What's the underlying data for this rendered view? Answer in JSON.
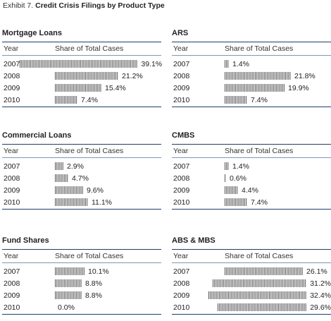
{
  "header": {
    "exhibit_label": "Exhibit 7.",
    "title": "Credit Crisis Filings by Product Type"
  },
  "colors": {
    "bar": "#555555",
    "rule_dark": "#1f3f66",
    "rule_light": "#7f96b3"
  },
  "chart_data": [
    {
      "type": "bar",
      "title": "Mortgage Loans",
      "xlabel": "Year",
      "ylabel": "Share of Total Cases",
      "categories": [
        "2007",
        "2008",
        "2009",
        "2010"
      ],
      "values": [
        39.1,
        21.2,
        15.4,
        7.4
      ],
      "labels": [
        "39.1%",
        "21.2%",
        "15.4%",
        "7.4%"
      ]
    },
    {
      "type": "bar",
      "title": "ARS",
      "xlabel": "Year",
      "ylabel": "Share of Total Cases",
      "categories": [
        "2007",
        "2008",
        "2009",
        "2010"
      ],
      "values": [
        1.4,
        21.8,
        19.9,
        7.4
      ],
      "labels": [
        "1.4%",
        "21.8%",
        "19.9%",
        "7.4%"
      ]
    },
    {
      "type": "bar",
      "title": "Commercial Loans",
      "xlabel": "Year",
      "ylabel": "Share of Total Cases",
      "categories": [
        "2007",
        "2008",
        "2009",
        "2010"
      ],
      "values": [
        2.9,
        4.7,
        9.6,
        11.1
      ],
      "labels": [
        "2.9%",
        "4.7%",
        "9.6%",
        "11.1%"
      ]
    },
    {
      "type": "bar",
      "title": "CMBS",
      "xlabel": "Year",
      "ylabel": "Share of Total Cases",
      "categories": [
        "2007",
        "2008",
        "2009",
        "2010"
      ],
      "values": [
        1.4,
        0.6,
        4.4,
        7.4
      ],
      "labels": [
        "1.4%",
        "0.6%",
        "4.4%",
        "7.4%"
      ]
    },
    {
      "type": "bar",
      "title": "Fund Shares",
      "xlabel": "Year",
      "ylabel": "Share of Total Cases",
      "categories": [
        "2007",
        "2008",
        "2009",
        "2010"
      ],
      "values": [
        10.1,
        8.8,
        8.8,
        0.0
      ],
      "labels": [
        "10.1%",
        "8.8%",
        "8.8%",
        "0.0%"
      ]
    },
    {
      "type": "bar",
      "title": "ABS & MBS",
      "xlabel": "Year",
      "ylabel": "Share of Total Cases",
      "categories": [
        "2007",
        "2008",
        "2009",
        "2010"
      ],
      "values": [
        26.1,
        31.2,
        32.4,
        29.6
      ],
      "labels": [
        "26.1%",
        "31.2%",
        "32.4%",
        "29.6%"
      ]
    }
  ]
}
